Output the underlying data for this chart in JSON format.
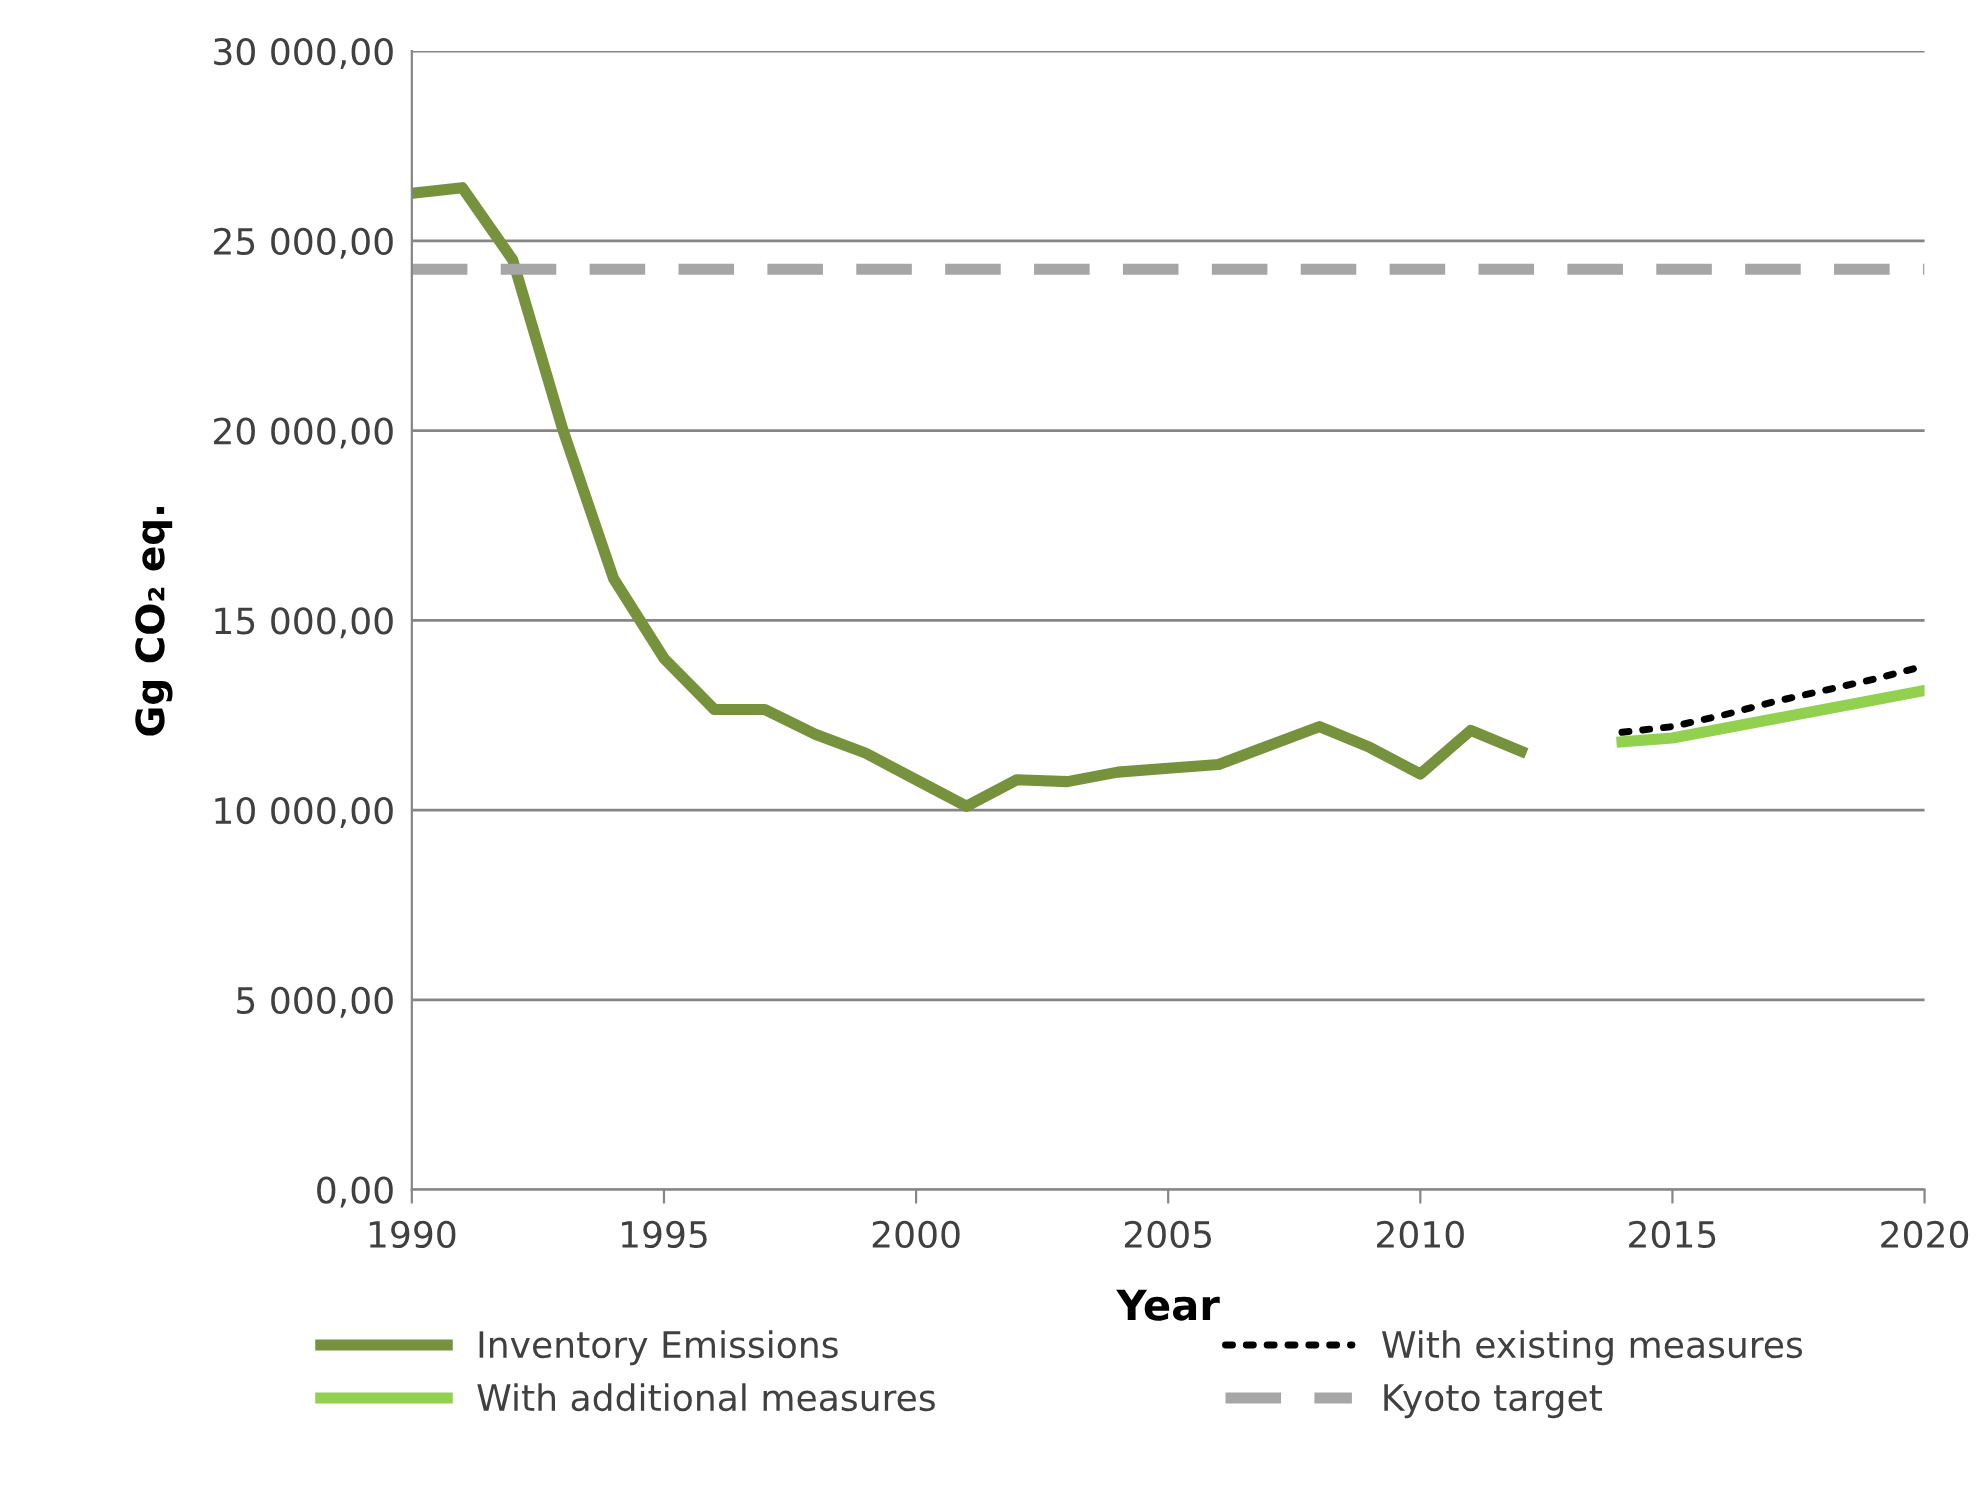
{
  "chart_data": {
    "type": "line",
    "xlabel": "Year",
    "ylabel": "Gg CO₂ eq.",
    "xlim": [
      1990,
      2020
    ],
    "xticks": [
      1990,
      1995,
      2000,
      2005,
      2010,
      2015,
      2020
    ],
    "ylim": [
      0,
      30000
    ],
    "yticks": [
      {
        "value": 0,
        "label": "0,00"
      },
      {
        "value": 5000,
        "label": "5 000,00"
      },
      {
        "value": 10000,
        "label": "10 000,00"
      },
      {
        "value": 15000,
        "label": "15 000,00"
      },
      {
        "value": 20000,
        "label": "20 000,00"
      },
      {
        "value": 25000,
        "label": "25 000,00"
      },
      {
        "value": 30000,
        "label": "30 000,00"
      }
    ],
    "grid": "y",
    "legend": "bottom",
    "marker": "none",
    "series": [
      {
        "name": "Inventory Emissions",
        "color": "#76923c",
        "line_style": "solid",
        "x": [
          1990,
          1991,
          1992,
          1993,
          1994,
          1995,
          1996,
          1997,
          1998,
          1999,
          2000,
          2001,
          2002,
          2003,
          2004,
          2005,
          2006,
          2007,
          2008,
          2009,
          2010,
          2011,
          2012
        ],
        "values": [
          26250,
          26400,
          24500,
          20000,
          16100,
          14000,
          12650,
          12650,
          12000,
          11500,
          10800,
          10100,
          10800,
          10750,
          11000,
          11100,
          11200,
          11700,
          12200,
          11650,
          10950,
          12100,
          11550
        ]
      },
      {
        "name": "With existing measures",
        "color": "#000000",
        "line_style": "dotted",
        "x": [
          2014,
          2015,
          2016,
          2017,
          2018,
          2019,
          2020
        ],
        "values": [
          12050,
          12200,
          12500,
          12850,
          13150,
          13450,
          13800
        ]
      },
      {
        "name": "With additional measures",
        "color": "#92d050",
        "line_style": "solid",
        "x": [
          2014,
          2015,
          2016,
          2017,
          2018,
          2019,
          2020
        ],
        "values": [
          11800,
          11900,
          12150,
          12400,
          12650,
          12900,
          13150
        ]
      },
      {
        "name": "Kyoto target",
        "color": "#a6a6a6",
        "line_style": "dashed",
        "x": [
          1990,
          2020
        ],
        "values": [
          24250,
          24250
        ]
      }
    ]
  }
}
